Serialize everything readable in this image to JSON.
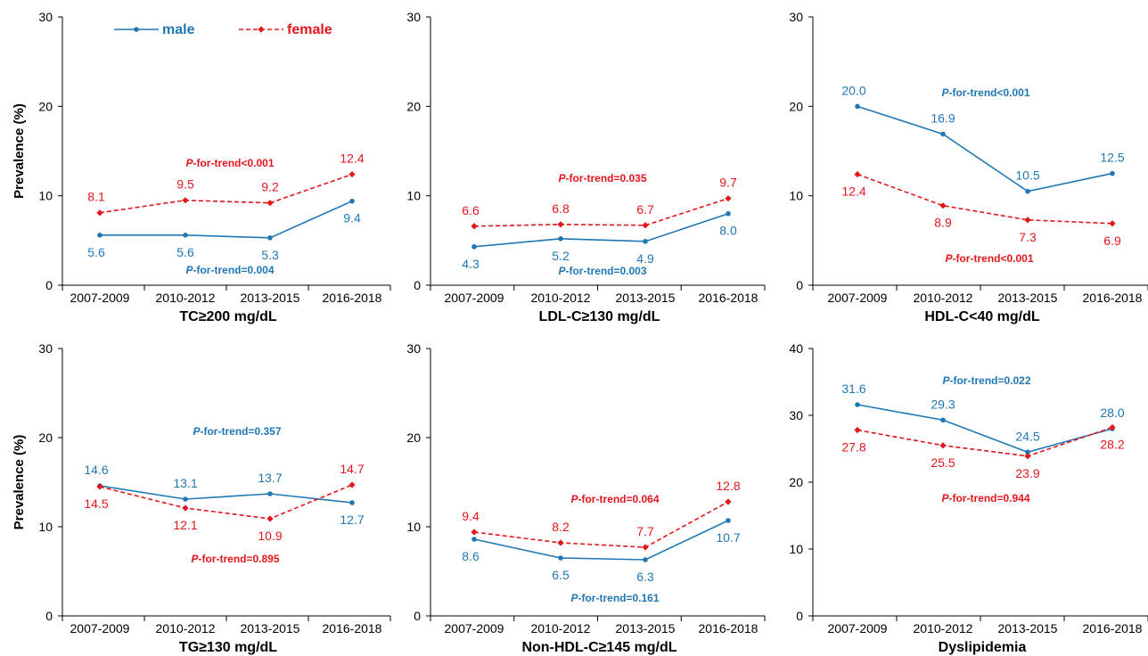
{
  "colors": {
    "male": "#1f77b4",
    "female": "#e3161c",
    "axis": "#000000"
  },
  "legend": {
    "male": "male",
    "female": "female"
  },
  "chart_data": [
    {
      "type": "line",
      "title": "TC≥200 mg/dL",
      "ylabel": "Prevalence (%)",
      "ylim": [
        0,
        30
      ],
      "yticks": [
        0,
        10,
        20,
        30
      ],
      "categories": [
        "2007-2009",
        "2010-2012",
        "2013-2015",
        "2016-2018"
      ],
      "series": [
        {
          "name": "male",
          "values": [
            5.6,
            5.6,
            5.3,
            9.4
          ],
          "labels": [
            "5.6",
            "5.6",
            "5.3",
            "9.4"
          ]
        },
        {
          "name": "female",
          "values": [
            8.1,
            9.5,
            9.2,
            12.4
          ],
          "labels": [
            "8.1",
            "9.5",
            "9.2",
            "12.4"
          ]
        }
      ],
      "annotations": {
        "male": {
          "p": "P",
          "rest": "-for-trend=0.004"
        },
        "female": {
          "p": "P",
          "rest": "-for-trend<0.001"
        }
      }
    },
    {
      "type": "line",
      "title": "LDL-C≥130 mg/dL",
      "ylabel": "",
      "ylim": [
        0,
        30
      ],
      "yticks": [
        0,
        10,
        20,
        30
      ],
      "categories": [
        "2007-2009",
        "2010-2012",
        "2013-2015",
        "2016-2018"
      ],
      "series": [
        {
          "name": "male",
          "values": [
            4.3,
            5.2,
            4.9,
            8.0
          ],
          "labels": [
            "4.3",
            "5.2",
            "4.9",
            "8.0"
          ]
        },
        {
          "name": "female",
          "values": [
            6.6,
            6.8,
            6.7,
            9.7
          ],
          "labels": [
            "6.6",
            "6.8",
            "6.7",
            "9.7"
          ]
        }
      ],
      "annotations": {
        "male": {
          "p": "P",
          "rest": "-for-trend=0.003"
        },
        "female": {
          "p": "P",
          "rest": "-for-trend=0.035"
        }
      }
    },
    {
      "type": "line",
      "title": "HDL-C<40 mg/dL",
      "ylabel": "",
      "ylim": [
        0,
        30
      ],
      "yticks": [
        0,
        10,
        20,
        30
      ],
      "categories": [
        "2007-2009",
        "2010-2012",
        "2013-2015",
        "2016-2018"
      ],
      "series": [
        {
          "name": "male",
          "values": [
            20.0,
            16.9,
            10.5,
            12.5
          ],
          "labels": [
            "20.0",
            "16.9",
            "10.5",
            "12.5"
          ]
        },
        {
          "name": "female",
          "values": [
            12.4,
            8.9,
            7.3,
            6.9
          ],
          "labels": [
            "12.4",
            "8.9",
            "7.3",
            "6.9"
          ]
        }
      ],
      "annotations": {
        "male": {
          "p": "P",
          "rest": "-for-trend<0.001"
        },
        "female": {
          "p": "P",
          "rest": "-for-trend<0.001"
        }
      }
    },
    {
      "type": "line",
      "title": "TG≥130 mg/dL",
      "ylabel": "Prevalence (%)",
      "ylim": [
        0,
        30
      ],
      "yticks": [
        0,
        10,
        20,
        30
      ],
      "categories": [
        "2007-2009",
        "2010-2012",
        "2013-2015",
        "2016-2018"
      ],
      "series": [
        {
          "name": "male",
          "values": [
            14.6,
            13.1,
            13.7,
            12.7
          ],
          "labels": [
            "14.6",
            "13.1",
            "13.7",
            "12.7"
          ]
        },
        {
          "name": "female",
          "values": [
            14.5,
            12.1,
            10.9,
            14.7
          ],
          "labels": [
            "14.5",
            "12.1",
            "10.9",
            "14.7"
          ]
        }
      ],
      "annotations": {
        "male": {
          "p": "P",
          "rest": "-for-trend=0.357"
        },
        "female": {
          "p": "P",
          "rest": "-for-trend=0.895"
        }
      }
    },
    {
      "type": "line",
      "title": "Non-HDL-C≥145 mg/dL",
      "ylabel": "",
      "ylim": [
        0,
        30
      ],
      "yticks": [
        0,
        10,
        20,
        30
      ],
      "categories": [
        "2007-2009",
        "2010-2012",
        "2013-2015",
        "2016-2018"
      ],
      "series": [
        {
          "name": "male",
          "values": [
            8.6,
            6.5,
            6.3,
            10.7
          ],
          "labels": [
            "8.6",
            "6.5",
            "6.3",
            "10.7"
          ]
        },
        {
          "name": "female",
          "values": [
            9.4,
            8.2,
            7.7,
            12.8
          ],
          "labels": [
            "9.4",
            "8.2",
            "7.7",
            "12.8"
          ]
        }
      ],
      "annotations": {
        "male": {
          "p": "P",
          "rest": "-for-trend=0.161"
        },
        "female": {
          "p": "P",
          "rest": "-for-trend=0.064"
        }
      }
    },
    {
      "type": "line",
      "title": "Dyslipidemia",
      "ylabel": "",
      "ylim": [
        0,
        40
      ],
      "yticks": [
        0,
        10,
        20,
        30,
        40
      ],
      "categories": [
        "2007-2009",
        "2010-2012",
        "2013-2015",
        "2016-2018"
      ],
      "series": [
        {
          "name": "male",
          "values": [
            31.6,
            29.3,
            24.5,
            28.0
          ],
          "labels": [
            "31.6",
            "29.3",
            "24.5",
            "28.0"
          ]
        },
        {
          "name": "female",
          "values": [
            27.8,
            25.5,
            23.9,
            28.2
          ],
          "labels": [
            "27.8",
            "25.5",
            "23.9",
            "28.2"
          ]
        }
      ],
      "annotations": {
        "male": {
          "p": "P",
          "rest": "-for-trend=0.022"
        },
        "female": {
          "p": "P",
          "rest": "-for-trend=0.944"
        }
      }
    }
  ]
}
